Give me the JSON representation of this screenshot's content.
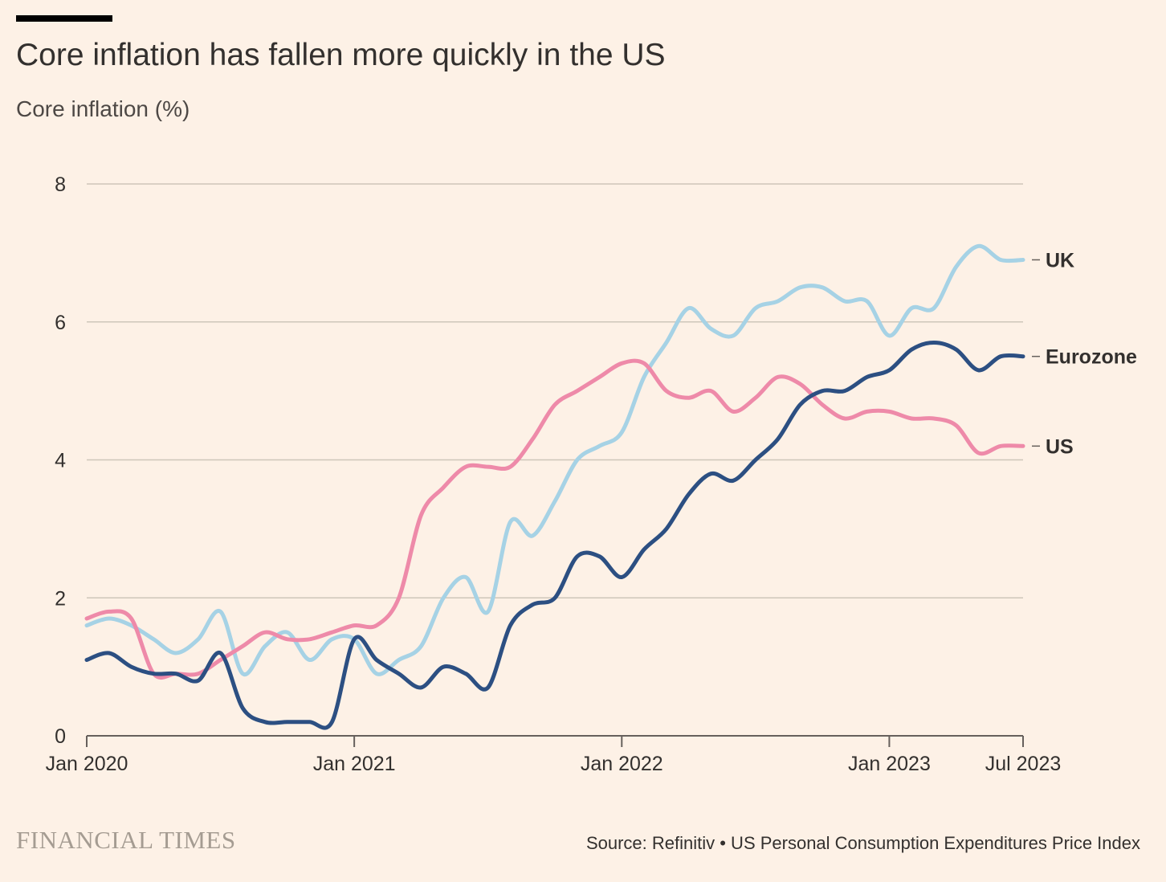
{
  "header": {
    "title": "Core inflation has fallen more quickly in the US",
    "subtitle": "Core inflation (%)"
  },
  "footer": {
    "brand": "FINANCIAL TIMES",
    "source": "Source: Refinitiv • US Personal Consumption Expenditures Price Index"
  },
  "colors": {
    "background": "#fdf1e6",
    "grid": "#cec6b9",
    "axis": "#66605c",
    "uk": "#a6d2e5",
    "eurozone": "#2c4f82",
    "us": "#ee8aa9"
  },
  "chart_data": {
    "type": "line",
    "title": "Core inflation has fallen more quickly in the US",
    "ylabel": "Core inflation (%)",
    "xlabel": "",
    "ylim": [
      0,
      8
    ],
    "yticks": [
      0,
      2,
      4,
      6,
      8
    ],
    "xlim": [
      "2020-01",
      "2023-07"
    ],
    "xticks": [
      {
        "date": "2020-01",
        "label": "Jan 2020"
      },
      {
        "date": "2021-01",
        "label": "Jan 2021"
      },
      {
        "date": "2022-01",
        "label": "Jan 2022"
      },
      {
        "date": "2023-01",
        "label": "Jan 2023"
      },
      {
        "date": "2023-07",
        "label": "Jul 2023"
      }
    ],
    "grid": true,
    "x": [
      "2020-01",
      "2020-02",
      "2020-03",
      "2020-04",
      "2020-05",
      "2020-06",
      "2020-07",
      "2020-08",
      "2020-09",
      "2020-10",
      "2020-11",
      "2020-12",
      "2021-01",
      "2021-02",
      "2021-03",
      "2021-04",
      "2021-05",
      "2021-06",
      "2021-07",
      "2021-08",
      "2021-09",
      "2021-10",
      "2021-11",
      "2021-12",
      "2022-01",
      "2022-02",
      "2022-03",
      "2022-04",
      "2022-05",
      "2022-06",
      "2022-07",
      "2022-08",
      "2022-09",
      "2022-10",
      "2022-11",
      "2022-12",
      "2023-01",
      "2023-02",
      "2023-03",
      "2023-04",
      "2023-05",
      "2023-06",
      "2023-07"
    ],
    "series": [
      {
        "name": "UK",
        "color_key": "uk",
        "values": [
          1.6,
          1.7,
          1.6,
          1.4,
          1.2,
          1.4,
          1.8,
          0.9,
          1.3,
          1.5,
          1.1,
          1.4,
          1.4,
          0.9,
          1.1,
          1.3,
          2.0,
          2.3,
          1.8,
          3.1,
          2.9,
          3.4,
          4.0,
          4.2,
          4.4,
          5.2,
          5.7,
          6.2,
          5.9,
          5.8,
          6.2,
          6.3,
          6.5,
          6.5,
          6.3,
          6.3,
          5.8,
          6.2,
          6.2,
          6.8,
          7.1,
          6.9,
          6.9
        ]
      },
      {
        "name": "Eurozone",
        "color_key": "eurozone",
        "values": [
          1.1,
          1.2,
          1.0,
          0.9,
          0.9,
          0.8,
          1.2,
          0.4,
          0.2,
          0.2,
          0.2,
          0.2,
          1.4,
          1.1,
          0.9,
          0.7,
          1.0,
          0.9,
          0.7,
          1.6,
          1.9,
          2.0,
          2.6,
          2.6,
          2.3,
          2.7,
          3.0,
          3.5,
          3.8,
          3.7,
          4.0,
          4.3,
          4.8,
          5.0,
          5.0,
          5.2,
          5.3,
          5.6,
          5.7,
          5.6,
          5.3,
          5.5,
          5.5
        ]
      },
      {
        "name": "US",
        "color_key": "us",
        "values": [
          1.7,
          1.8,
          1.7,
          0.9,
          0.9,
          0.9,
          1.1,
          1.3,
          1.5,
          1.4,
          1.4,
          1.5,
          1.6,
          1.6,
          2.0,
          3.2,
          3.6,
          3.9,
          3.9,
          3.9,
          4.3,
          4.8,
          5.0,
          5.2,
          5.4,
          5.4,
          5.0,
          4.9,
          5.0,
          4.7,
          4.9,
          5.2,
          5.1,
          4.8,
          4.6,
          4.7,
          4.7,
          4.6,
          4.6,
          4.5,
          4.1,
          4.2,
          4.2
        ]
      }
    ]
  }
}
